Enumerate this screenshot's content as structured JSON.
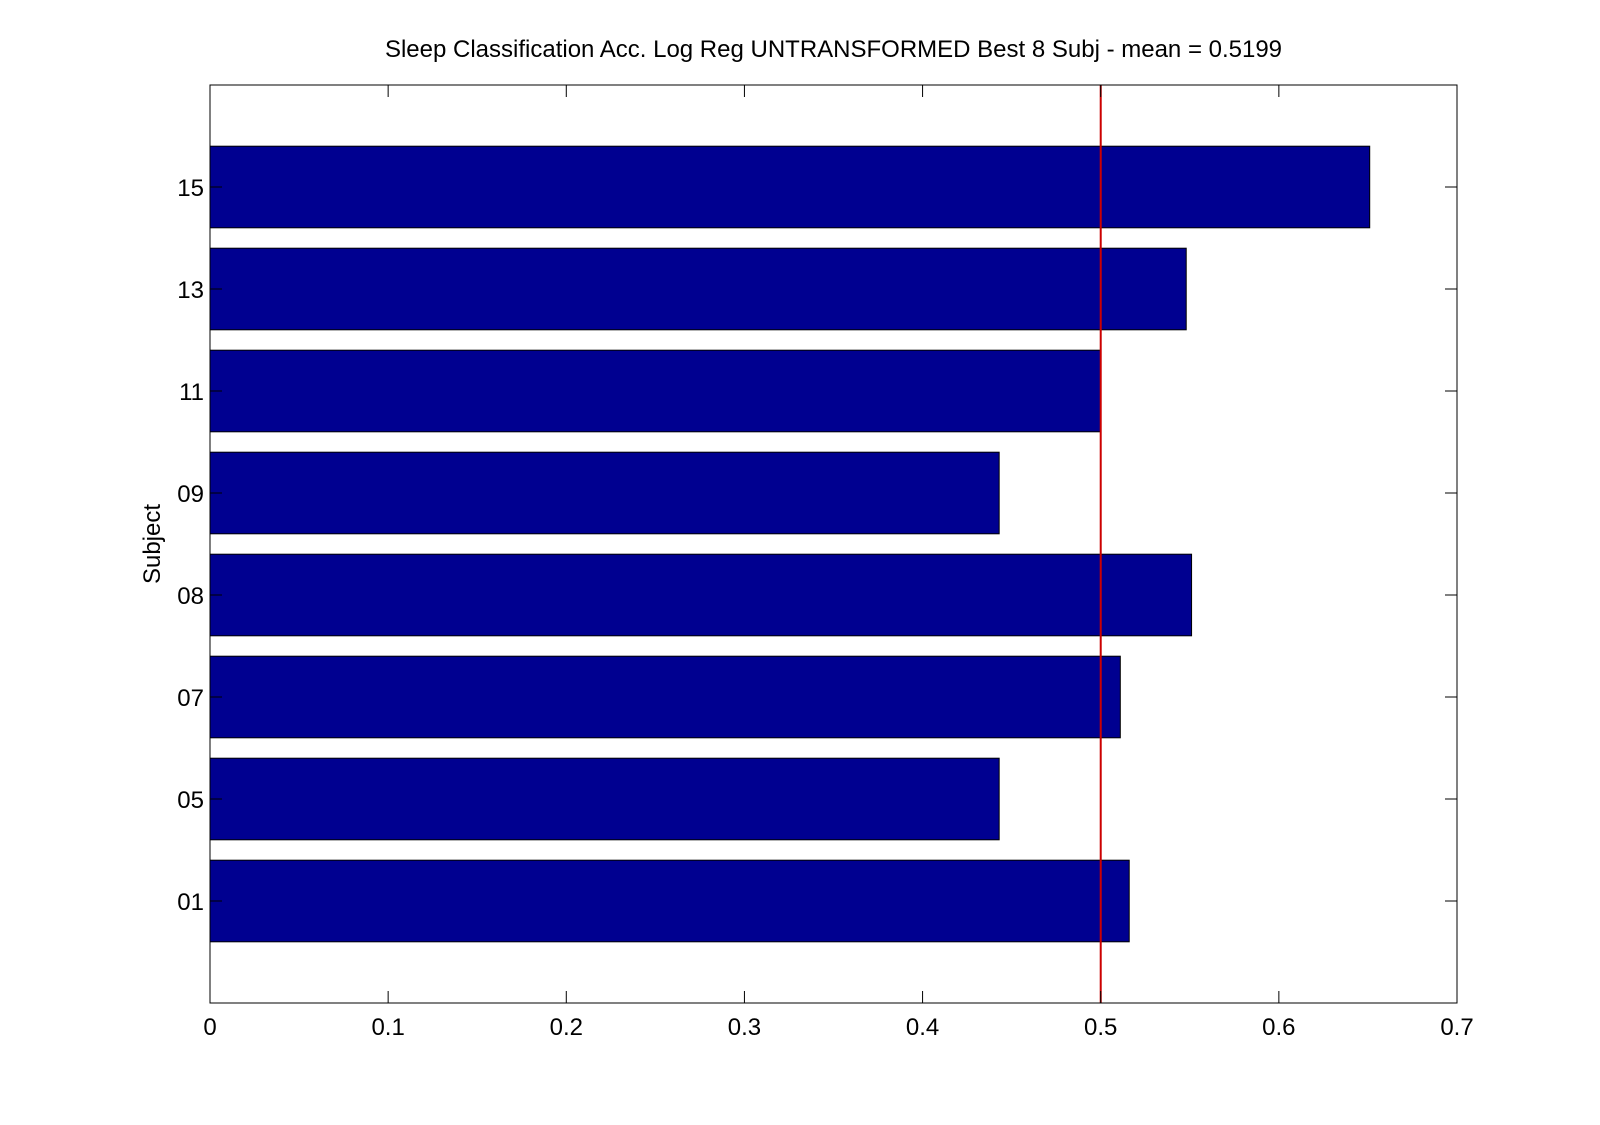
{
  "chart_data": {
    "type": "bar",
    "orientation": "horizontal",
    "title": "Sleep Classification Acc. Log Reg UNTRANSFORMED Best 8 Subj - mean = 0.5199",
    "xlabel": "",
    "ylabel": "Subject",
    "categories": [
      "01",
      "05",
      "07",
      "08",
      "09",
      "11",
      "13",
      "15"
    ],
    "values": [
      0.516,
      0.443,
      0.511,
      0.551,
      0.443,
      0.5,
      0.548,
      0.651
    ],
    "xlim": [
      0,
      0.7
    ],
    "xticks": [
      "0",
      "0.1",
      "0.2",
      "0.3",
      "0.4",
      "0.5",
      "0.6",
      "0.7"
    ],
    "reference_line": {
      "x": 0.5,
      "color": "#cc0000"
    },
    "bar_color": "#000090",
    "grid": false,
    "legend": "none"
  }
}
